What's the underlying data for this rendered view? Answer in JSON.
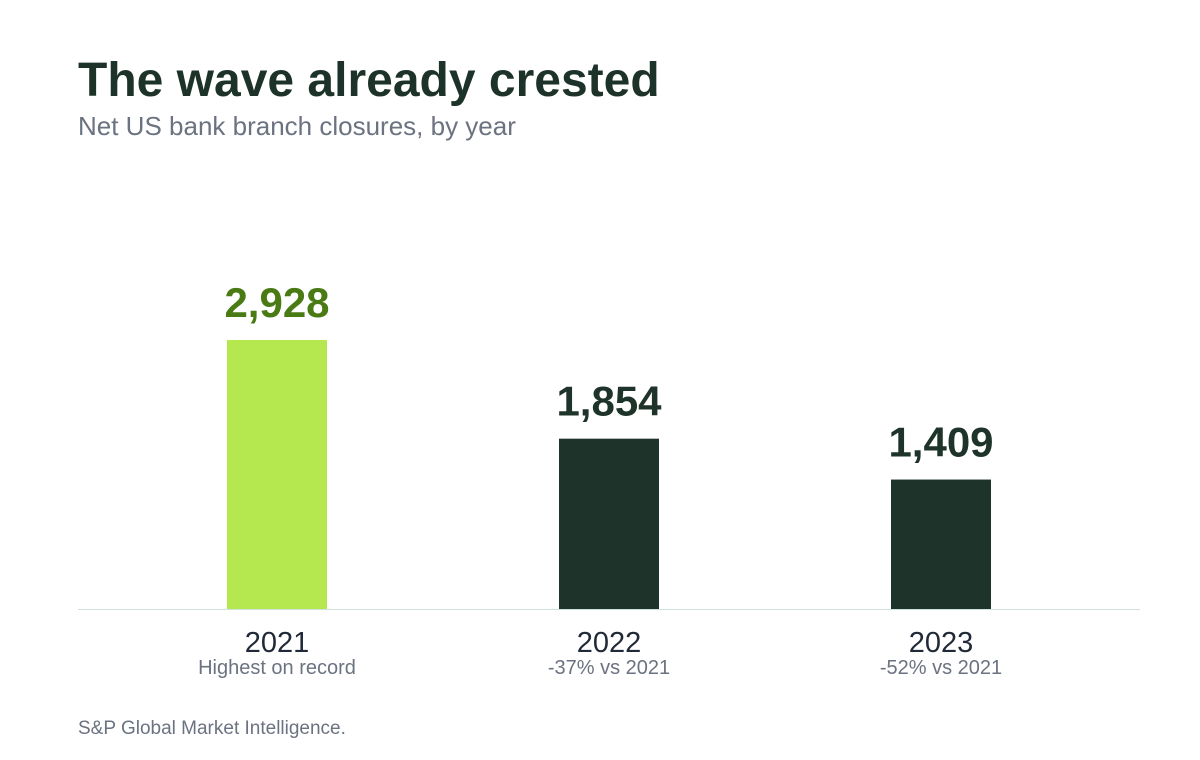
{
  "title": "The wave already crested",
  "subtitle": "Net US bank branch closures, by year",
  "source": "S&P Global Market Intelligence.",
  "colors": {
    "highlight_bar": "#b5e74f",
    "highlight_label": "#4a7a14",
    "bar": "#1e332a",
    "label": "#1e332a",
    "category": "#1f2937",
    "note": "#6b7280",
    "baseline": "#cfe3dc"
  },
  "chart_data": {
    "type": "bar",
    "categories": [
      "2021",
      "2022",
      "2023"
    ],
    "values": [
      2928,
      1854,
      1409
    ],
    "value_labels": [
      "2,928",
      "1,854",
      "1,409"
    ],
    "notes": [
      "Highest on record",
      "-37% vs 2021",
      "-52% vs 2021"
    ],
    "highlight_index": 0,
    "ylim": [
      0,
      2928
    ],
    "grid": false,
    "title": "The wave already crested",
    "subtitle": "Net US bank branch closures, by year",
    "xlabel": "",
    "ylabel": ""
  }
}
